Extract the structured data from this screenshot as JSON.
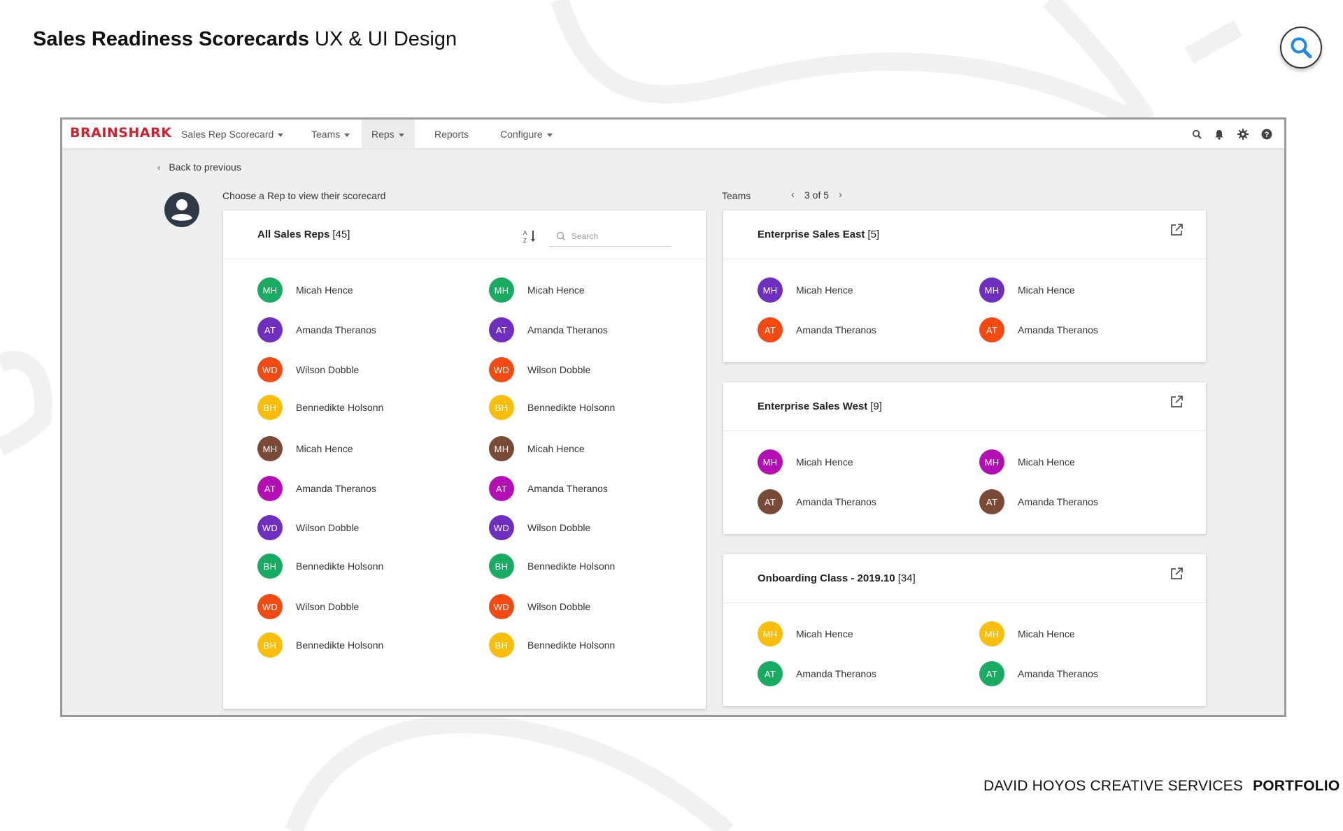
{
  "header": {
    "title_bold": "Sales Readiness Scorecards",
    "title_rest": "UX & UI Design"
  },
  "zoom_button": {
    "icon": "magnifier-icon",
    "accent": "#1f8ae0"
  },
  "footer": {
    "studio": "DAVID HOYOS CREATIVE SERVICES",
    "label": "PORTFOLIO"
  },
  "app": {
    "logo": "BRAINSHARK",
    "brand_color": "#d0202e",
    "nav": [
      {
        "label": "Sales Rep Scorecard",
        "dropdown": true,
        "active": false
      },
      {
        "label": "Teams",
        "dropdown": true,
        "active": false
      },
      {
        "label": "Reps",
        "dropdown": true,
        "active": true
      },
      {
        "label": "Reports",
        "dropdown": false,
        "active": false
      },
      {
        "label": "Configure",
        "dropdown": true,
        "active": false
      }
    ],
    "nav_icons": [
      "search-icon",
      "bell-icon",
      "gear-icon",
      "help-icon"
    ],
    "back_link": "Back to previous",
    "choose_label": "Choose a Rep to view their scorecard",
    "teams_label": "Teams",
    "pager": "3 of 5",
    "all_reps": {
      "title": "All Sales Reps",
      "count": "[45]",
      "search_placeholder": "Search",
      "left": [
        {
          "initials": "MH",
          "name": "Micah Hence",
          "color": "#1aab62"
        },
        {
          "initials": "AT",
          "name": "Amanda Theranos",
          "color": "#6e2fc0"
        },
        {
          "initials": "WD",
          "name": "Wilson Dobble",
          "color": "#f24a12"
        },
        {
          "initials": "BH",
          "name": "Bennedikte Holsonn",
          "color": "#f9be0c"
        },
        {
          "initials": "MH",
          "name": "Micah Hence",
          "color": "#7a4a36"
        },
        {
          "initials": "AT",
          "name": "Amanda Theranos",
          "color": "#b40fb4"
        },
        {
          "initials": "WD",
          "name": "Wilson Dobble",
          "color": "#6e2fc0"
        },
        {
          "initials": "BH",
          "name": "Bennedikte Holsonn",
          "color": "#1aab62"
        },
        {
          "initials": "WD",
          "name": "Wilson Dobble",
          "color": "#f24a12"
        },
        {
          "initials": "BH",
          "name": "Bennedikte Holsonn",
          "color": "#f9be0c"
        }
      ],
      "right": [
        {
          "initials": "MH",
          "name": "Micah Hence",
          "color": "#1aab62"
        },
        {
          "initials": "AT",
          "name": "Amanda Theranos",
          "color": "#6e2fc0"
        },
        {
          "initials": "WD",
          "name": "Wilson Dobble",
          "color": "#f24a12"
        },
        {
          "initials": "BH",
          "name": "Bennedikte Holsonn",
          "color": "#f9be0c"
        },
        {
          "initials": "MH",
          "name": "Micah Hence",
          "color": "#7a4a36"
        },
        {
          "initials": "AT",
          "name": "Amanda Theranos",
          "color": "#b40fb4"
        },
        {
          "initials": "WD",
          "name": "Wilson Dobble",
          "color": "#6e2fc0"
        },
        {
          "initials": "BH",
          "name": "Bennedikte Holsonn",
          "color": "#1aab62"
        },
        {
          "initials": "WD",
          "name": "Wilson Dobble",
          "color": "#f24a12"
        },
        {
          "initials": "BH",
          "name": "Bennedikte Holsonn",
          "color": "#f9be0c"
        }
      ]
    },
    "teams": [
      {
        "title": "Enterprise Sales East",
        "count": "[5]",
        "reps": [
          {
            "initials": "MH",
            "name": "Micah Hence",
            "color": "#6e2fc0"
          },
          {
            "initials": "MH",
            "name": "Micah Hence",
            "color": "#6e2fc0"
          },
          {
            "initials": "AT",
            "name": "Amanda Theranos",
            "color": "#f24a12"
          },
          {
            "initials": "AT",
            "name": "Amanda Theranos",
            "color": "#f24a12"
          }
        ]
      },
      {
        "title": "Enterprise Sales West",
        "count": "[9]",
        "reps": [
          {
            "initials": "MH",
            "name": "Micah Hence",
            "color": "#b40fb4"
          },
          {
            "initials": "MH",
            "name": "Micah Hence",
            "color": "#b40fb4"
          },
          {
            "initials": "AT",
            "name": "Amanda Theranos",
            "color": "#7a4a36"
          },
          {
            "initials": "AT",
            "name": "Amanda Theranos",
            "color": "#7a4a36"
          }
        ]
      },
      {
        "title": "Onboarding Class - 2019.10",
        "count": "[34]",
        "reps": [
          {
            "initials": "MH",
            "name": "Micah Hence",
            "color": "#f9be0c"
          },
          {
            "initials": "MH",
            "name": "Micah Hence",
            "color": "#f9be0c"
          },
          {
            "initials": "AT",
            "name": "Amanda Theranos",
            "color": "#1aab62"
          },
          {
            "initials": "AT",
            "name": "Amanda Theranos",
            "color": "#1aab62"
          }
        ]
      }
    ]
  }
}
